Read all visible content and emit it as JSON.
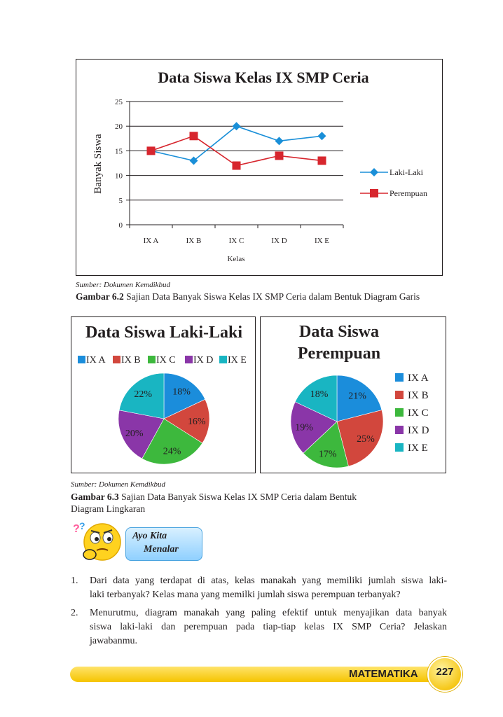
{
  "chart_data": [
    {
      "type": "line",
      "title": "Data Siswa Kelas IX SMP Ceria",
      "xlabel": "Kelas",
      "ylabel": "Banyak Siswa",
      "ylim": [
        0,
        25
      ],
      "yticks": [
        "0",
        "5",
        "10",
        "15",
        "20",
        "25"
      ],
      "categories": [
        "IX A",
        "IX B",
        "IX C",
        "IX D",
        "IX E"
      ],
      "grid": true,
      "legend": "right",
      "series": [
        {
          "name": "Laki-Laki",
          "values": [
            15,
            13,
            20,
            17,
            18
          ],
          "color": "#1a8fd8",
          "marker": "diamond"
        },
        {
          "name": "Perempuan",
          "values": [
            15,
            18,
            12,
            14,
            13
          ],
          "color": "#d7262e",
          "marker": "square"
        }
      ]
    },
    {
      "type": "pie",
      "title": "Data Siswa Laki-Laki",
      "legend": "top",
      "categories": [
        "IX A",
        "IX B",
        "IX C",
        "IX D",
        "IX E"
      ],
      "values": [
        18,
        16,
        24,
        20,
        22
      ],
      "labels": [
        "18%",
        "16%",
        "24%",
        "20%",
        "22%"
      ]
    },
    {
      "type": "pie",
      "title": "Data Siswa Perempuan",
      "legend": "right",
      "categories": [
        "IX A",
        "IX B",
        "IX C",
        "IX D",
        "IX E"
      ],
      "values": [
        21,
        25,
        17,
        19,
        18
      ],
      "labels": [
        "21%",
        "25%",
        "17%",
        "19%",
        "18%"
      ]
    }
  ],
  "pie_colors": [
    "#1b8ddb",
    "#d2473d",
    "#3db83d",
    "#8a36a8",
    "#19b5c2"
  ],
  "title2_lines": [
    "Data Siswa",
    "Perempuan"
  ],
  "source1": "Sumber: Dokumen Kemdikbud",
  "caption1_bold": "Gambar 6.2",
  "caption1_text": " Sajian Data Banyak Siswa Kelas IX SMP Ceria dalam Bentuk Diagram Garis",
  "source2": "Sumber: Dokumen Kemdikbud",
  "caption2_bold": "Gambar 6.3",
  "caption2_line1": " Sajian Data Banyak Siswa Kelas IX SMP Ceria dalam Bentuk",
  "caption2_line2": "Diagram Lingkaran",
  "ayo_line1": "Ayo Kita",
  "ayo_line2": "Menalar",
  "questions": [
    {
      "num": "1.",
      "lines": [
        "Dari data yang terdapat di atas, kelas manakah yang memiliki jumlah siswa laki-",
        "laki terbanyak? Kelas mana yang memilki jumlah siswa perempuan terbanyak?"
      ]
    },
    {
      "num": "2.",
      "lines": [
        "Menurutmu, diagram manakah yang paling efektif untuk menyajikan data banyak",
        "siswa laki-laki dan perempuan pada tiap-tiap kelas IX SMP Ceria? Jelaskan",
        "jawabanmu."
      ]
    }
  ],
  "footer_label": "MATEMATIKA",
  "page_number": "227"
}
